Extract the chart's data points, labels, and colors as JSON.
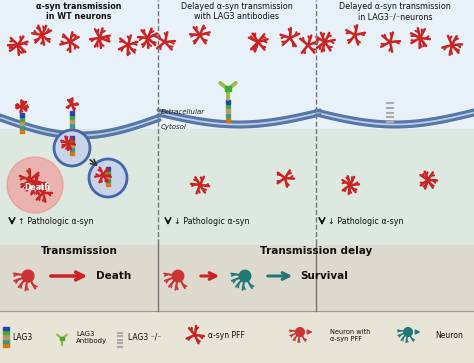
{
  "panel_titles": [
    "α-syn transmission\nin WT neurons",
    "Delayed α-syn transmission\nwith LAG3 antibodies",
    "Delayed α-syn transmission\nin LAG3⁻/⁻neurons"
  ],
  "extracellular_label": "Extracellular",
  "cytosol_label": "Cytosol",
  "pathologic_labels": [
    "↑ Pathologic α-syn",
    "↓ Pathologic α-syn",
    "↓ Pathologic α-syn"
  ],
  "transmission_label": "Transmission",
  "transmission_delay_label": "Transmission delay",
  "death_label": "Death",
  "survival_label": "Survival",
  "legend_items": [
    "LAG3",
    "LAG3\nAntibody",
    "LAG3 ⁻/⁻",
    "α-syn PFF",
    "Neuron with\nα-syn PFF",
    "Neuron"
  ],
  "colors": {
    "bg_top": "#e8f0f8",
    "bg_cell": "#dce8e0",
    "bg_bottom": "#ddd9ce",
    "bg_legend": "#e8e4d8",
    "membrane": "#5577aa",
    "alpha_syn": "#cc2222",
    "lag3_blue": "#2244bb",
    "lag3_green": "#44aa33",
    "lag3_tan": "#bb9966",
    "lag3_teal": "#339988",
    "lag3_orange": "#dd7700",
    "antibody": "#99bb44",
    "endosome": "#4466aa",
    "death_glow": "#ff6666",
    "neuron_red": "#cc3333",
    "neuron_teal": "#227777",
    "neuron_gray": "#888888",
    "divider": "#777777",
    "text": "#111111"
  }
}
